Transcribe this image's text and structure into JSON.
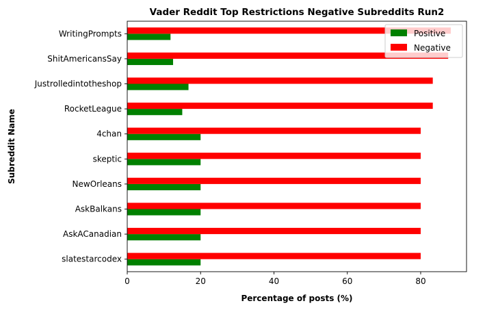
{
  "chart_data": {
    "type": "bar",
    "orientation": "horizontal",
    "title": "Vader Reddit Top Restrictions Negative Subreddits Run2",
    "xlabel": "Percentage of posts (%)",
    "ylabel": "Subreddit Name",
    "xlim": [
      0,
      92.5
    ],
    "xticks": [
      0,
      20,
      40,
      60,
      80
    ],
    "categories": [
      "WritingPrompts",
      "ShitAmericansSay",
      "Justrolledintotheshop",
      "RocketLeague",
      "4chan",
      "skeptic",
      "NewOrleans",
      "AskBalkans",
      "AskACanadian",
      "slatestarcodex"
    ],
    "series": [
      {
        "name": "Positive",
        "color": "#008000",
        "values": [
          11.8,
          12.5,
          16.7,
          15.0,
          20.0,
          20.0,
          20.0,
          20.0,
          20.0,
          20.0
        ]
      },
      {
        "name": "Negative",
        "color": "#ff0000",
        "values": [
          88.2,
          87.5,
          83.3,
          83.3,
          80.0,
          80.0,
          80.0,
          80.0,
          80.0,
          80.0
        ]
      }
    ],
    "legend_position": "top-right",
    "grid": false
  }
}
